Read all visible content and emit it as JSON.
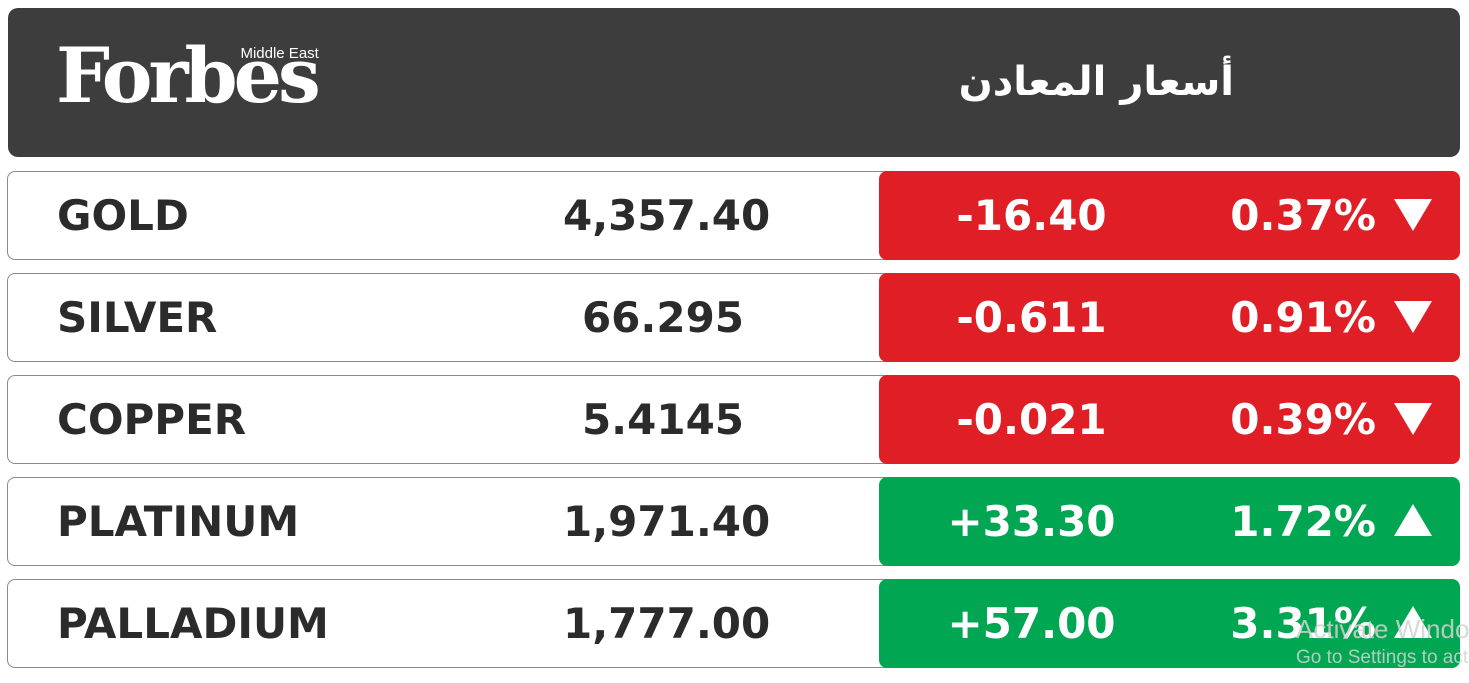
{
  "header": {
    "brand": "Forbes",
    "brand_sub": "Middle East",
    "title": "أسعار المعادن"
  },
  "colors": {
    "header_bg": "#3d3d3d",
    "down": "#e01e26",
    "up": "#00a651"
  },
  "metals": [
    {
      "name": "GOLD",
      "price": "4,357.40",
      "change": "-16.40",
      "percent": "0.37%",
      "direction": "down",
      "arrow_icon": "triangle-down-icon"
    },
    {
      "name": "SILVER",
      "price": "66.295",
      "change": "-0.611",
      "percent": "0.91%",
      "direction": "down",
      "arrow_icon": "triangle-down-icon"
    },
    {
      "name": "COPPER",
      "price": "5.4145",
      "change": "-0.021",
      "percent": "0.39%",
      "direction": "down",
      "arrow_icon": "triangle-down-icon"
    },
    {
      "name": "PLATINUM",
      "price": "1,971.40",
      "change": "+33.30",
      "percent": "1.72%",
      "direction": "up",
      "arrow_icon": "triangle-up-icon"
    },
    {
      "name": "PALLADIUM",
      "price": "1,777.00",
      "change": "+57.00",
      "percent": "3.31%",
      "direction": "up",
      "arrow_icon": "triangle-up-icon"
    }
  ],
  "watermark": {
    "line1": "Activate Windows",
    "line2": "Go to Settings to activate Windows."
  }
}
